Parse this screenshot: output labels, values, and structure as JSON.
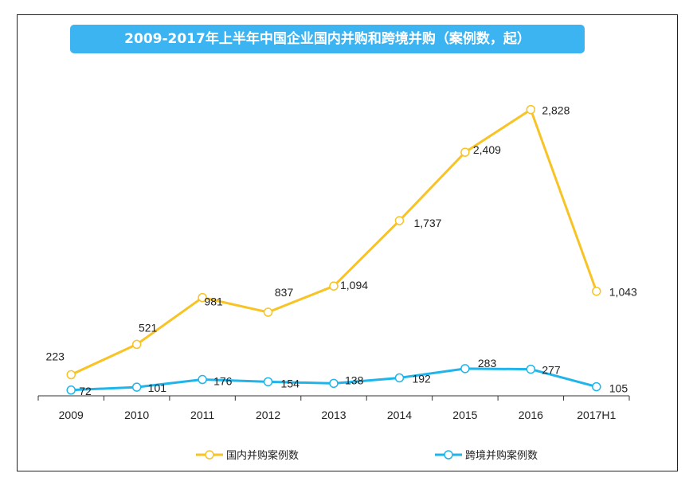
{
  "chart_data": {
    "type": "line",
    "title": "2009-2017年上半年中国企业国内并购和跨境并购（案例数，起）",
    "categories": [
      "2009",
      "2010",
      "2011",
      "2012",
      "2013",
      "2014",
      "2015",
      "2016",
      "2017H1"
    ],
    "series": [
      {
        "name": "国内并购案例数",
        "color": "#f7c325",
        "values": [
          223,
          521,
          981,
          837,
          1094,
          1737,
          2409,
          2828,
          1043
        ],
        "labels": [
          "223",
          "521",
          "981",
          "837",
          "1,094",
          "1,737",
          "2,409",
          "2,828",
          "1,043"
        ]
      },
      {
        "name": "跨境并购案例数",
        "color": "#1fb5ea",
        "values": [
          72,
          101,
          176,
          154,
          138,
          192,
          283,
          277,
          105
        ],
        "labels": [
          "72",
          "101",
          "176",
          "154",
          "138",
          "192",
          "283",
          "277",
          "105"
        ]
      }
    ],
    "ylim": [
      0,
      3000
    ],
    "grid": false,
    "legend": "bottom",
    "xlabel": "",
    "ylabel": ""
  }
}
